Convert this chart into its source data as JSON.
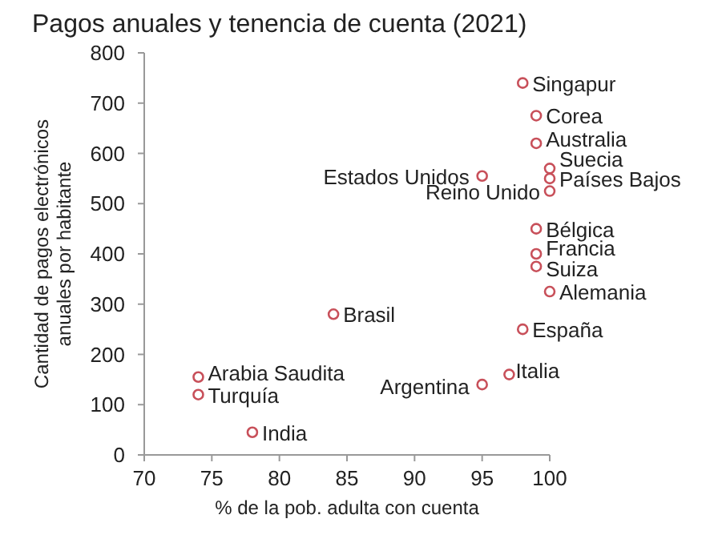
{
  "chart_data": {
    "type": "scatter",
    "title": "Pagos anuales y tenencia de cuenta (2021)",
    "xlabel": "% de la pob. adulta con cuenta",
    "ylabel": "Cantidad de pagos electrónicos anuales por habitante",
    "xlim": [
      70,
      100
    ],
    "xticks": [
      70,
      75,
      80,
      85,
      90,
      95,
      100
    ],
    "ylim": [
      0,
      800
    ],
    "yticks": [
      0,
      100,
      200,
      300,
      400,
      500,
      600,
      700,
      800
    ],
    "marker": "circle",
    "grid": false,
    "series": [
      {
        "name": "Singapur",
        "color": "#c8505a",
        "x": [
          98
        ],
        "values": [
          740
        ]
      },
      {
        "name": "Corea",
        "color": "#c8505a",
        "x": [
          99
        ],
        "values": [
          675
        ]
      },
      {
        "name": "Australia",
        "color": "#c8505a",
        "x": [
          99
        ],
        "values": [
          620
        ]
      },
      {
        "name": "Suecia",
        "color": "#c8505a",
        "x": [
          100
        ],
        "values": [
          570
        ]
      },
      {
        "name": "Estados Unidos",
        "color": "#c8505a",
        "x": [
          95
        ],
        "values": [
          555
        ]
      },
      {
        "name": "Países Bajos",
        "color": "#c8505a",
        "x": [
          100
        ],
        "values": [
          550
        ]
      },
      {
        "name": "Reino Unido",
        "color": "#c8505a",
        "x": [
          100
        ],
        "values": [
          525
        ]
      },
      {
        "name": "Bélgica",
        "color": "#c8505a",
        "x": [
          99
        ],
        "values": [
          450
        ]
      },
      {
        "name": "Francia",
        "color": "#c8505a",
        "x": [
          99
        ],
        "values": [
          400
        ]
      },
      {
        "name": "Suiza",
        "color": "#c8505a",
        "x": [
          99
        ],
        "values": [
          375
        ]
      },
      {
        "name": "Alemania",
        "color": "#c8505a",
        "x": [
          100
        ],
        "values": [
          325
        ]
      },
      {
        "name": "Brasil",
        "color": "#c8505a",
        "x": [
          84
        ],
        "values": [
          280
        ]
      },
      {
        "name": "España",
        "color": "#c8505a",
        "x": [
          98
        ],
        "values": [
          250
        ]
      },
      {
        "name": "Italia",
        "color": "#c8505a",
        "x": [
          97
        ],
        "values": [
          160
        ]
      },
      {
        "name": "Arabia Saudita",
        "color": "#c8505a",
        "x": [
          74
        ],
        "values": [
          155
        ]
      },
      {
        "name": "Argentina",
        "color": "#c8505a",
        "x": [
          95
        ],
        "values": [
          140
        ]
      },
      {
        "name": "Turquía",
        "color": "#c8505a",
        "x": [
          74
        ],
        "values": [
          120
        ]
      },
      {
        "name": "India",
        "color": "#c8505a",
        "x": [
          78
        ],
        "values": [
          45
        ]
      }
    ]
  }
}
